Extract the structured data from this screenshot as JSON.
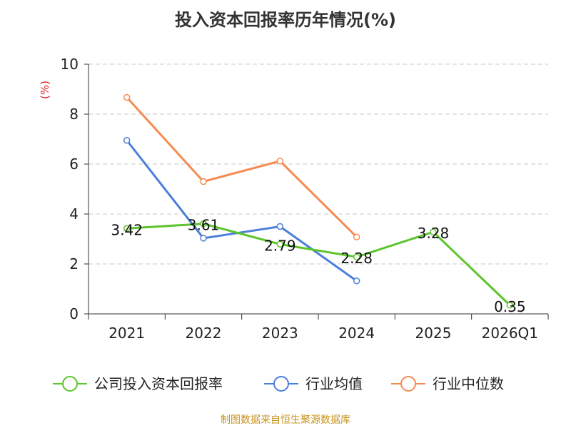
{
  "chart_data": {
    "type": "line",
    "title": "投入资本回报率历年情况(%)",
    "ylabel": "(%)",
    "xlabel": "",
    "ylim": [
      0,
      10
    ],
    "yticks": [
      0,
      2,
      4,
      6,
      8,
      10
    ],
    "grid": true,
    "legend_position": "bottom",
    "categories": [
      "2021",
      "2022",
      "2023",
      "2024",
      "2025",
      "2026Q1"
    ],
    "series": [
      {
        "name": "公司投入资本回报率",
        "color": "#5cc42c",
        "labels": true,
        "values": [
          3.42,
          3.61,
          2.79,
          2.28,
          3.28,
          0.35
        ],
        "value_labels": [
          "3.42",
          "3.61",
          "2.79",
          "2.28",
          "3.28",
          "0.35"
        ]
      },
      {
        "name": "行业均值",
        "color": "#4a7fdb",
        "labels": false,
        "values": [
          6.95,
          3.03,
          3.5,
          1.32,
          null,
          null
        ]
      },
      {
        "name": "行业中位数",
        "color": "#f68b52",
        "labels": false,
        "values": [
          8.67,
          5.3,
          6.12,
          3.08,
          null,
          null
        ]
      }
    ]
  },
  "footer": {
    "source": "制图数据来自恒生聚源数据库"
  }
}
